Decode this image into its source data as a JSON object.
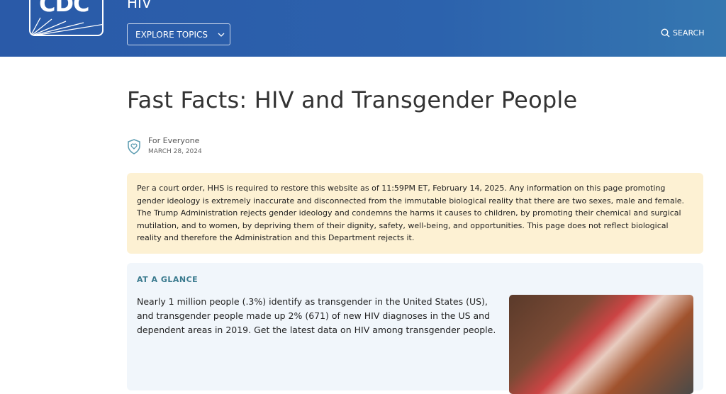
{
  "header": {
    "logo_text": "CDC",
    "section": "HIV",
    "explore_label": "EXPLORE TOPICS",
    "search_label": "SEARCH",
    "brand_color": "#2a5aa8"
  },
  "page": {
    "title": "Fast Facts: HIV and Transgender People",
    "audience": "For Everyone",
    "date": "MARCH 28, 2024"
  },
  "notice": "Per a court order, HHS is required to restore this website as of 11:59PM ET, February 14, 2025. Any information on this page promoting gender ideology is extremely inaccurate and disconnected from the immutable biological reality that there are two sexes, male and female. The Trump Administration rejects gender ideology and condemns the harms it causes to children, by promoting their chemical and surgical mutilation, and to women, by depriving them of their dignity, safety, well-being, and opportunities. This page does not reflect biological reality and therefore the Administration and this Department rejects it.",
  "glance": {
    "heading": "AT A GLANCE",
    "text": "Nearly 1 million people (.3%) identify as transgender in the United States (US), and transgender people made up 2% (671) of new HIV diagnoses in the US and dependent areas in 2019. Get the latest data on HIV among transgender people."
  }
}
